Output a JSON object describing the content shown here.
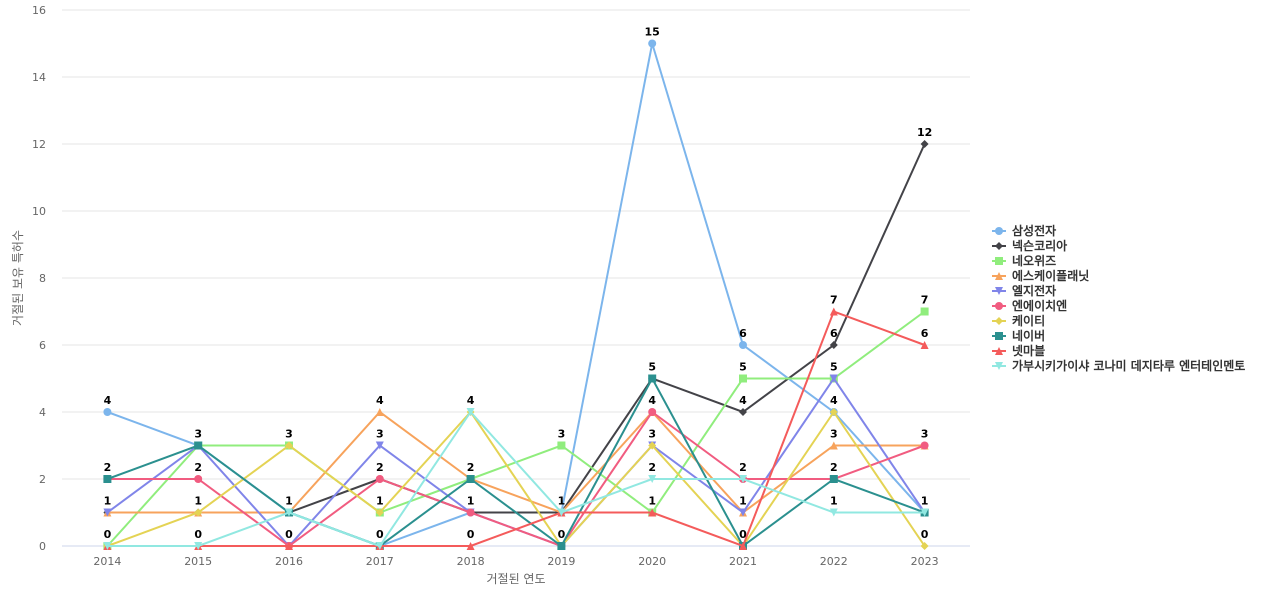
{
  "chart_data": {
    "type": "line",
    "x_label": "거절된 연도",
    "y_label": "거절된 보유 특허수",
    "categories": [
      "2014",
      "2015",
      "2016",
      "2017",
      "2018",
      "2019",
      "2020",
      "2021",
      "2022",
      "2023"
    ],
    "ylim": [
      0,
      16
    ],
    "yticks": [
      0,
      2,
      4,
      6,
      8,
      10,
      12,
      14,
      16
    ],
    "grid": true,
    "series": [
      {
        "name": "삼성전자",
        "color": "#7cb5ec",
        "marker": "circle",
        "values": [
          4,
          3,
          1,
          0,
          1,
          1,
          15,
          6,
          4,
          1
        ]
      },
      {
        "name": "넥슨코리아",
        "color": "#434348",
        "marker": "diamond",
        "values": [
          1,
          1,
          1,
          2,
          1,
          1,
          5,
          4,
          6,
          12
        ]
      },
      {
        "name": "네오위즈",
        "color": "#90ed7d",
        "marker": "square",
        "values": [
          0,
          3,
          3,
          1,
          2,
          3,
          1,
          5,
          5,
          7
        ]
      },
      {
        "name": "에스케이플래닛",
        "color": "#f7a35c",
        "marker": "triangle",
        "values": [
          1,
          1,
          1,
          4,
          2,
          1,
          4,
          1,
          3,
          3
        ]
      },
      {
        "name": "엘지전자",
        "color": "#8085e9",
        "marker": "triangle-down",
        "values": [
          1,
          3,
          0,
          3,
          1,
          0,
          3,
          1,
          5,
          1
        ]
      },
      {
        "name": "엔에이치엔",
        "color": "#f15c80",
        "marker": "circle",
        "values": [
          2,
          2,
          0,
          2,
          1,
          0,
          4,
          2,
          2,
          3
        ]
      },
      {
        "name": "케이티",
        "color": "#e4d354",
        "marker": "diamond",
        "values": [
          0,
          1,
          3,
          1,
          4,
          0,
          3,
          0,
          4,
          0
        ]
      },
      {
        "name": "네이버",
        "color": "#2b908f",
        "marker": "square",
        "values": [
          2,
          3,
          1,
          0,
          2,
          0,
          5,
          0,
          2,
          1
        ]
      },
      {
        "name": "넷마블",
        "color": "#f45b5b",
        "marker": "triangle",
        "values": [
          0,
          0,
          0,
          0,
          0,
          1,
          1,
          0,
          7,
          6
        ]
      },
      {
        "name": "가부시키가이샤 코나미 데지타루 엔터테인멘토",
        "color": "#91e8e1",
        "marker": "triangle-down",
        "values": [
          0,
          0,
          1,
          0,
          4,
          1,
          2,
          2,
          1,
          1
        ]
      }
    ]
  }
}
